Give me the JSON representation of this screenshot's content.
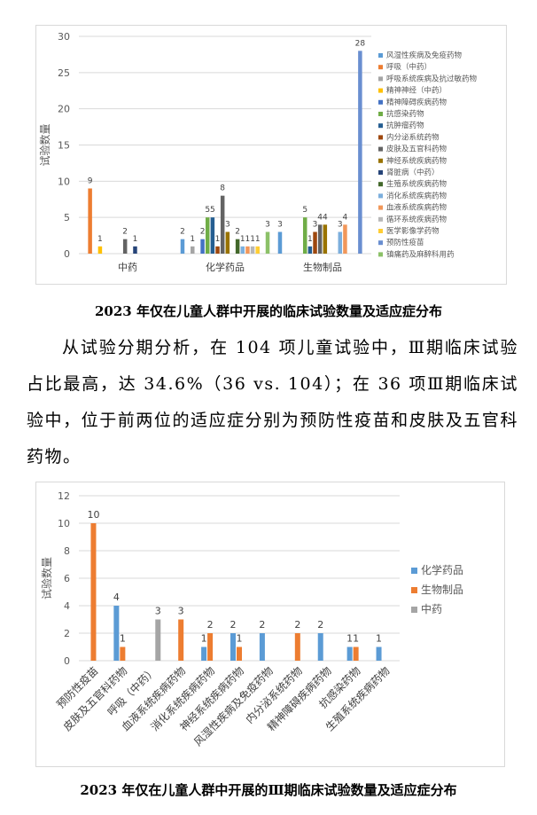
{
  "chart_data": [
    {
      "type": "bar",
      "title": "",
      "xlabel": "",
      "ylabel": "试验数量",
      "ylim": [
        0,
        30
      ],
      "yticks": [
        0,
        5,
        10,
        15,
        20,
        25,
        30
      ],
      "grid": true,
      "legend": "right",
      "categories": [
        "中药",
        "化学药品",
        "生物制品"
      ],
      "series": [
        {
          "name": "风湿性疾病及免疫药物",
          "color": "#5B9BD5",
          "values": [
            null,
            2,
            3
          ]
        },
        {
          "name": "呼吸（中药）",
          "color": "#ED7D31",
          "values": [
            9,
            null,
            null
          ]
        },
        {
          "name": "呼吸系统疾病及抗过敏药物",
          "color": "#A5A5A5",
          "values": [
            null,
            1,
            null
          ]
        },
        {
          "name": "精神神经（中药）",
          "color": "#FFC000",
          "values": [
            1,
            null,
            null
          ]
        },
        {
          "name": "精神障碍疾病药物",
          "color": "#4472C4",
          "values": [
            null,
            2,
            null
          ]
        },
        {
          "name": "抗感染药物",
          "color": "#70AD47",
          "values": [
            null,
            5,
            5
          ]
        },
        {
          "name": "抗肿瘤药物",
          "color": "#255E91",
          "values": [
            null,
            5,
            1
          ]
        },
        {
          "name": "内分泌系统药物",
          "color": "#9E480E",
          "values": [
            null,
            1,
            3
          ]
        },
        {
          "name": "皮肤及五官科药物",
          "color": "#636363",
          "values": [
            2,
            8,
            4
          ]
        },
        {
          "name": "神经系统疾病药物",
          "color": "#997300",
          "values": [
            null,
            3,
            4
          ]
        },
        {
          "name": "肾脏病（中药）",
          "color": "#264478",
          "values": [
            1,
            null,
            null
          ]
        },
        {
          "name": "生殖系统疾病药物",
          "color": "#43682B",
          "values": [
            null,
            2,
            null
          ]
        },
        {
          "name": "消化系统疾病药物",
          "color": "#7CAFDD",
          "values": [
            null,
            1,
            3
          ]
        },
        {
          "name": "血液系统疾病药物",
          "color": "#F1975A",
          "values": [
            null,
            1,
            4
          ]
        },
        {
          "name": "循环系统疾病药物",
          "color": "#B7B7B7",
          "values": [
            null,
            1,
            null
          ]
        },
        {
          "name": "医学影像学药物",
          "color": "#FFCD33",
          "values": [
            null,
            1,
            null
          ]
        },
        {
          "name": "预防性疫苗",
          "color": "#698ED0",
          "values": [
            null,
            null,
            28
          ]
        },
        {
          "name": "镇痛药及麻醉科用药",
          "color": "#8CC168",
          "values": [
            null,
            3,
            null
          ]
        }
      ]
    },
    {
      "type": "bar",
      "title": "",
      "xlabel": "",
      "ylabel": "试验数量",
      "ylim": [
        0,
        12
      ],
      "yticks": [
        0,
        2,
        4,
        6,
        8,
        10,
        12
      ],
      "grid": true,
      "legend": "right",
      "categories": [
        "预防性疫苗",
        "皮肤及五官科药物",
        "呼吸（中药）",
        "血液系统疾病药物",
        "消化系统疾病药物",
        "神经系统疾病药物",
        "风湿性疾病及免疫药物",
        "内分泌系统药物",
        "精神障碍疾病药物",
        "抗感染药物",
        "生殖系统疾病药物"
      ],
      "series": [
        {
          "name": "化学药品",
          "color": "#5B9BD5",
          "values": [
            null,
            4,
            null,
            null,
            1,
            2,
            2,
            null,
            2,
            1,
            1
          ]
        },
        {
          "name": "生物制品",
          "color": "#ED7D31",
          "values": [
            10,
            1,
            null,
            3,
            2,
            1,
            null,
            2,
            null,
            1,
            null
          ]
        },
        {
          "name": "中药",
          "color": "#A5A5A5",
          "values": [
            null,
            null,
            3,
            null,
            null,
            null,
            null,
            null,
            null,
            null,
            null
          ]
        }
      ]
    }
  ],
  "captions": {
    "chart1": "2023 年仅在儿童人群中开展的临床试验数量及适应症分布",
    "chart2": "2023 年仅在儿童人群中开展的Ⅲ期临床试验数量及适应症分布"
  },
  "paragraph": "从试验分期分析，在 104 项儿童试验中，Ⅲ期临床试验占比最高，达 34.6%（36  vs.  104）；在 36 项Ⅲ期临床试验中，位于前两位的适应症分别为预防性疫苗和皮肤及五官科药物。"
}
